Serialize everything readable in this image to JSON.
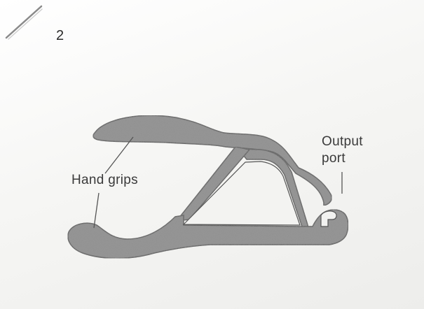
{
  "figure": {
    "number": "2"
  },
  "labels": {
    "hand_grips": "Hand grips",
    "output_port_line1": "Output",
    "output_port_line2": "port"
  }
}
